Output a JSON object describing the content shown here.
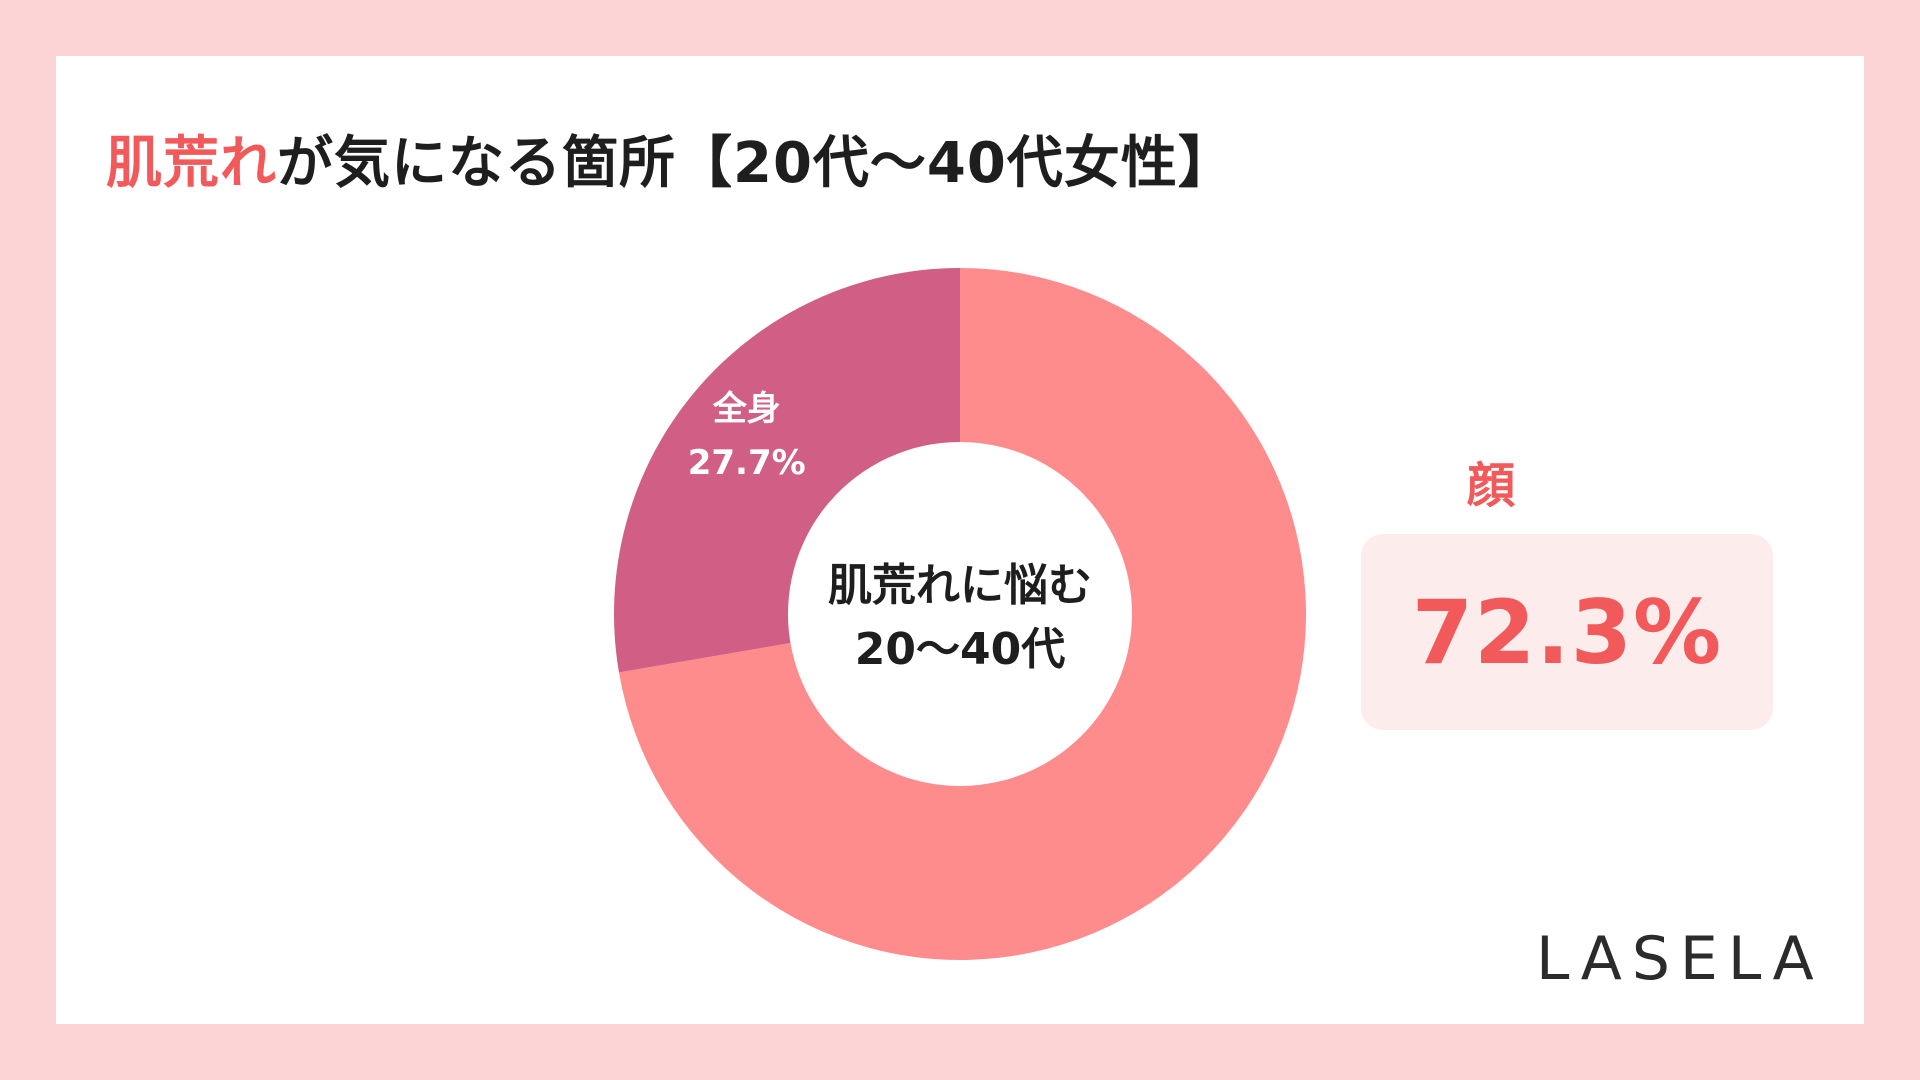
{
  "title": {
    "accent": "肌荒れ",
    "rest": "が気になる箇所【20代～40代女性】"
  },
  "center_label": {
    "line1": "肌荒れに悩む",
    "line2": "20～40代"
  },
  "callout": {
    "category": "顔",
    "value": "72.3%"
  },
  "brand": "LASELA",
  "colors": {
    "background": "#fdd4d5",
    "card": "#ffffff",
    "accent": "#f2595b",
    "face_slice": "#ff8c8c",
    "body_slice": "#d05e85",
    "callout_bg": "#fdecec"
  },
  "chart_data": {
    "type": "pie",
    "donut": true,
    "categories": [
      "顔",
      "全身"
    ],
    "values": [
      72.3,
      27.7
    ],
    "value_labels": [
      "",
      "27.7%"
    ],
    "slice_labels": [
      "",
      "全身"
    ],
    "colors": [
      "#ff8c8c",
      "#d05e85"
    ],
    "start": "top",
    "direction": "clockwise"
  }
}
